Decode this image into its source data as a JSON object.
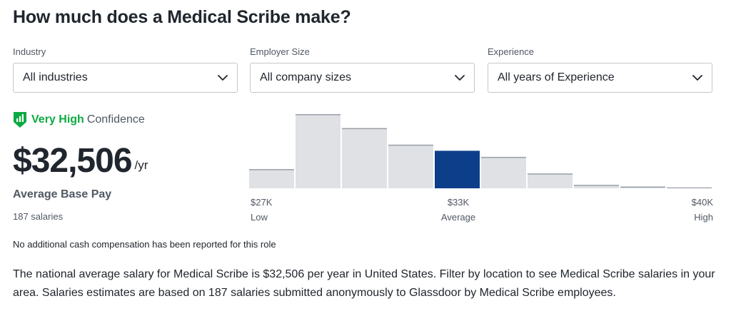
{
  "page": {
    "title": "How much does a Medical Scribe make?"
  },
  "filters": [
    {
      "label": "Industry",
      "value": "All industries"
    },
    {
      "label": "Employer Size",
      "value": "All company sizes"
    },
    {
      "label": "Experience",
      "value": "All years of Experience"
    }
  ],
  "confidence": {
    "level": "Very High",
    "text": "Confidence",
    "color": "#0caa41",
    "icon": "shield-bars-icon"
  },
  "pay": {
    "amount": "$32,506",
    "unit": "/yr",
    "label": "Average Base Pay",
    "salaries": "187 salaries",
    "no_cash": "No additional cash compensation has been reported for this role"
  },
  "chart_data": {
    "type": "bar",
    "bars": [
      22,
      85,
      69,
      50,
      43,
      36,
      17,
      4,
      2,
      1
    ],
    "highlight_index": 4,
    "highlight_color": "#0d3e8a",
    "bar_color": "#dfe1e5",
    "x_ticks": [
      {
        "value": "$27K",
        "label": "Low"
      },
      {
        "value": "$33K",
        "label": "Average"
      },
      {
        "value": "$40K",
        "label": "High"
      }
    ]
  },
  "summary": "The national average salary for Medical Scribe is $32,506 per year in United States. Filter by location to see Medical Scribe salaries in your area. Salaries estimates are based on 187 salaries submitted anonymously to Glassdoor by Medical Scribe employees."
}
